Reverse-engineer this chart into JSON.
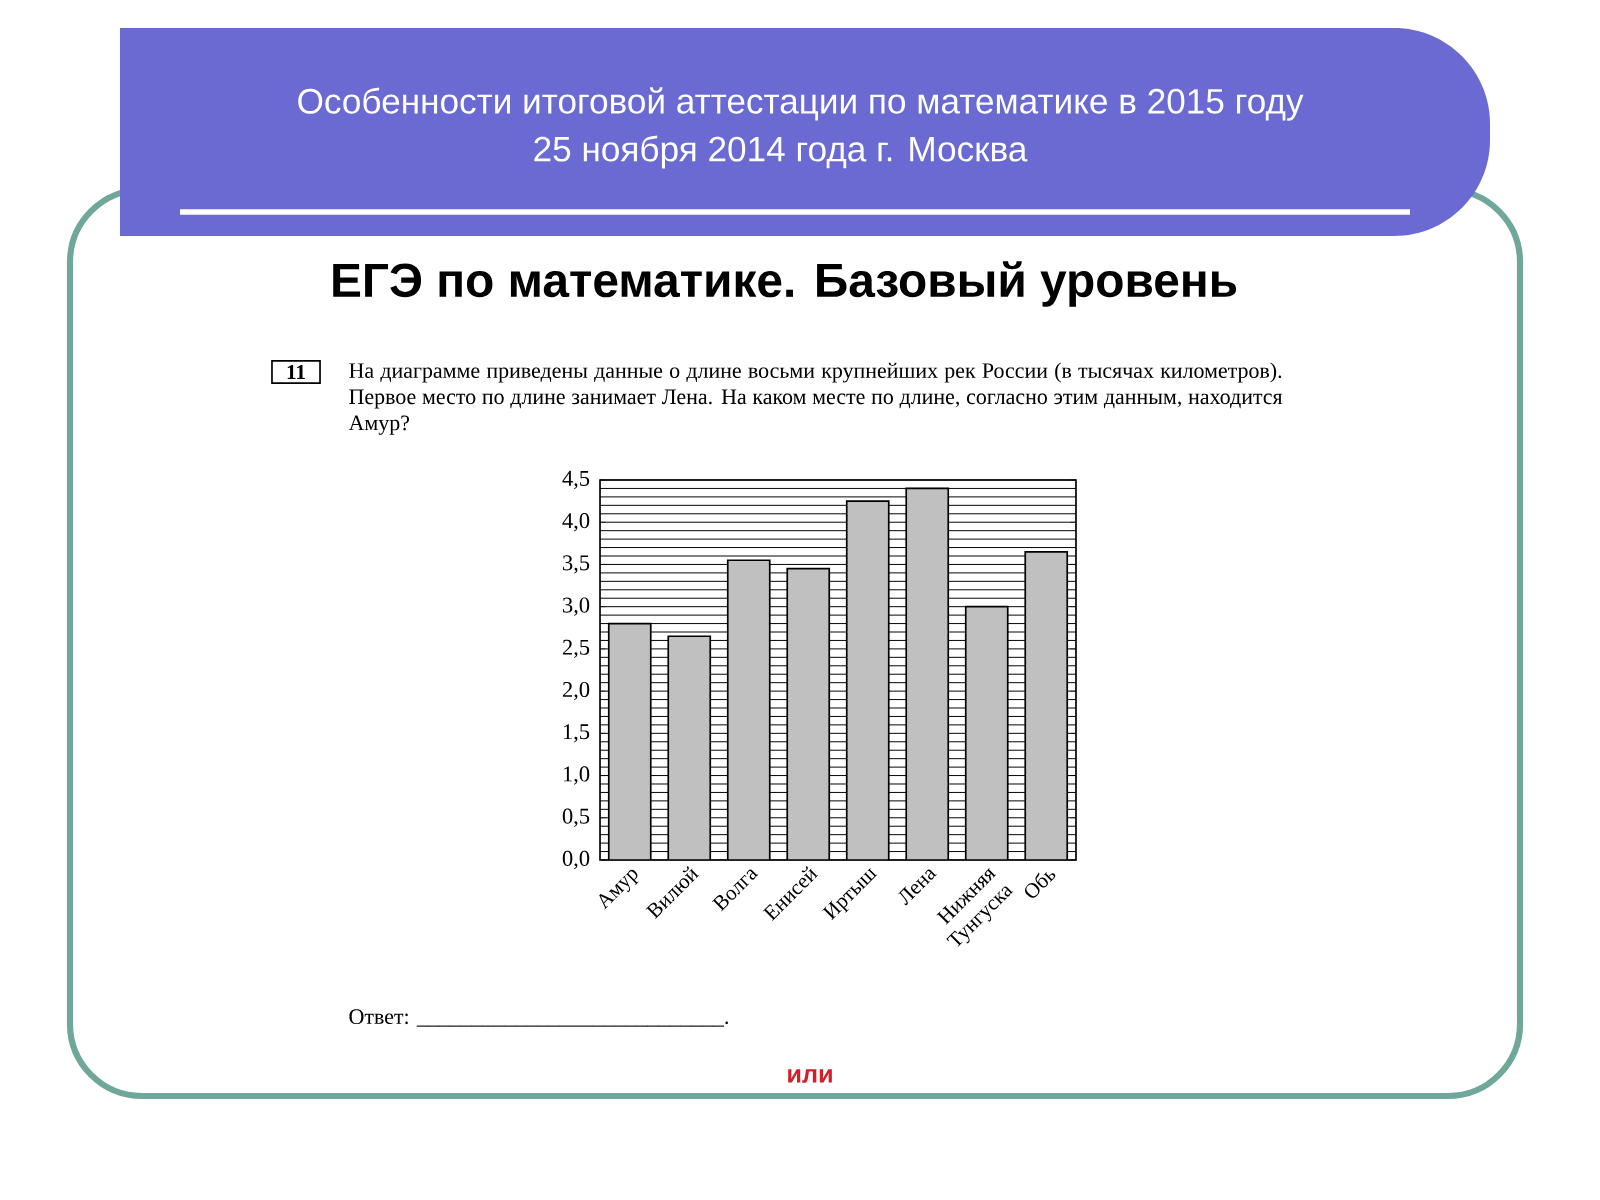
{
  "chart_data": {
    "type": "bar",
    "title": "Особенности итоговой аттестации по математике в 2015 году",
    "subtitle": "25 ноября 2014 года   г. Москва",
    "annotations": [
      "ЕГЭ по математике. Базовый уровень",
      "11",
      "На диаграмме приведены данные о длине восьми крупнейших рек России (в тысячах километров). Первое место по длине занимает Лена. На каком месте по длине, согласно этим данным, находится Амур?",
      "Ответ: ____________________________.",
      "или"
    ],
    "categories": [
      "Амур",
      "Вилюй",
      "Волга",
      "Енисей",
      "Иртыш",
      "Лена",
      "Нижняя Тунгуска",
      "Обь"
    ],
    "values": [
      2.8,
      2.65,
      3.55,
      3.45,
      4.25,
      4.4,
      3.0,
      3.65
    ],
    "color": "#c0c0c0",
    "ylim": [
      0,
      4.5
    ],
    "yticks": [
      {
        "value": 0,
        "label": "0,0"
      },
      {
        "value": 0.5,
        "label": "0,5"
      },
      {
        "value": 1,
        "label": "1,0"
      },
      {
        "value": 1.5,
        "label": "1,5"
      },
      {
        "value": 2,
        "label": "2,0"
      },
      {
        "value": 2.5,
        "label": "2,5"
      },
      {
        "value": 3,
        "label": "3,0"
      },
      {
        "value": 3.5,
        "label": "3,5"
      },
      {
        "value": 4,
        "label": "4,0"
      },
      {
        "value": 4.5,
        "label": "4,5"
      }
    ],
    "grid": "y"
  }
}
